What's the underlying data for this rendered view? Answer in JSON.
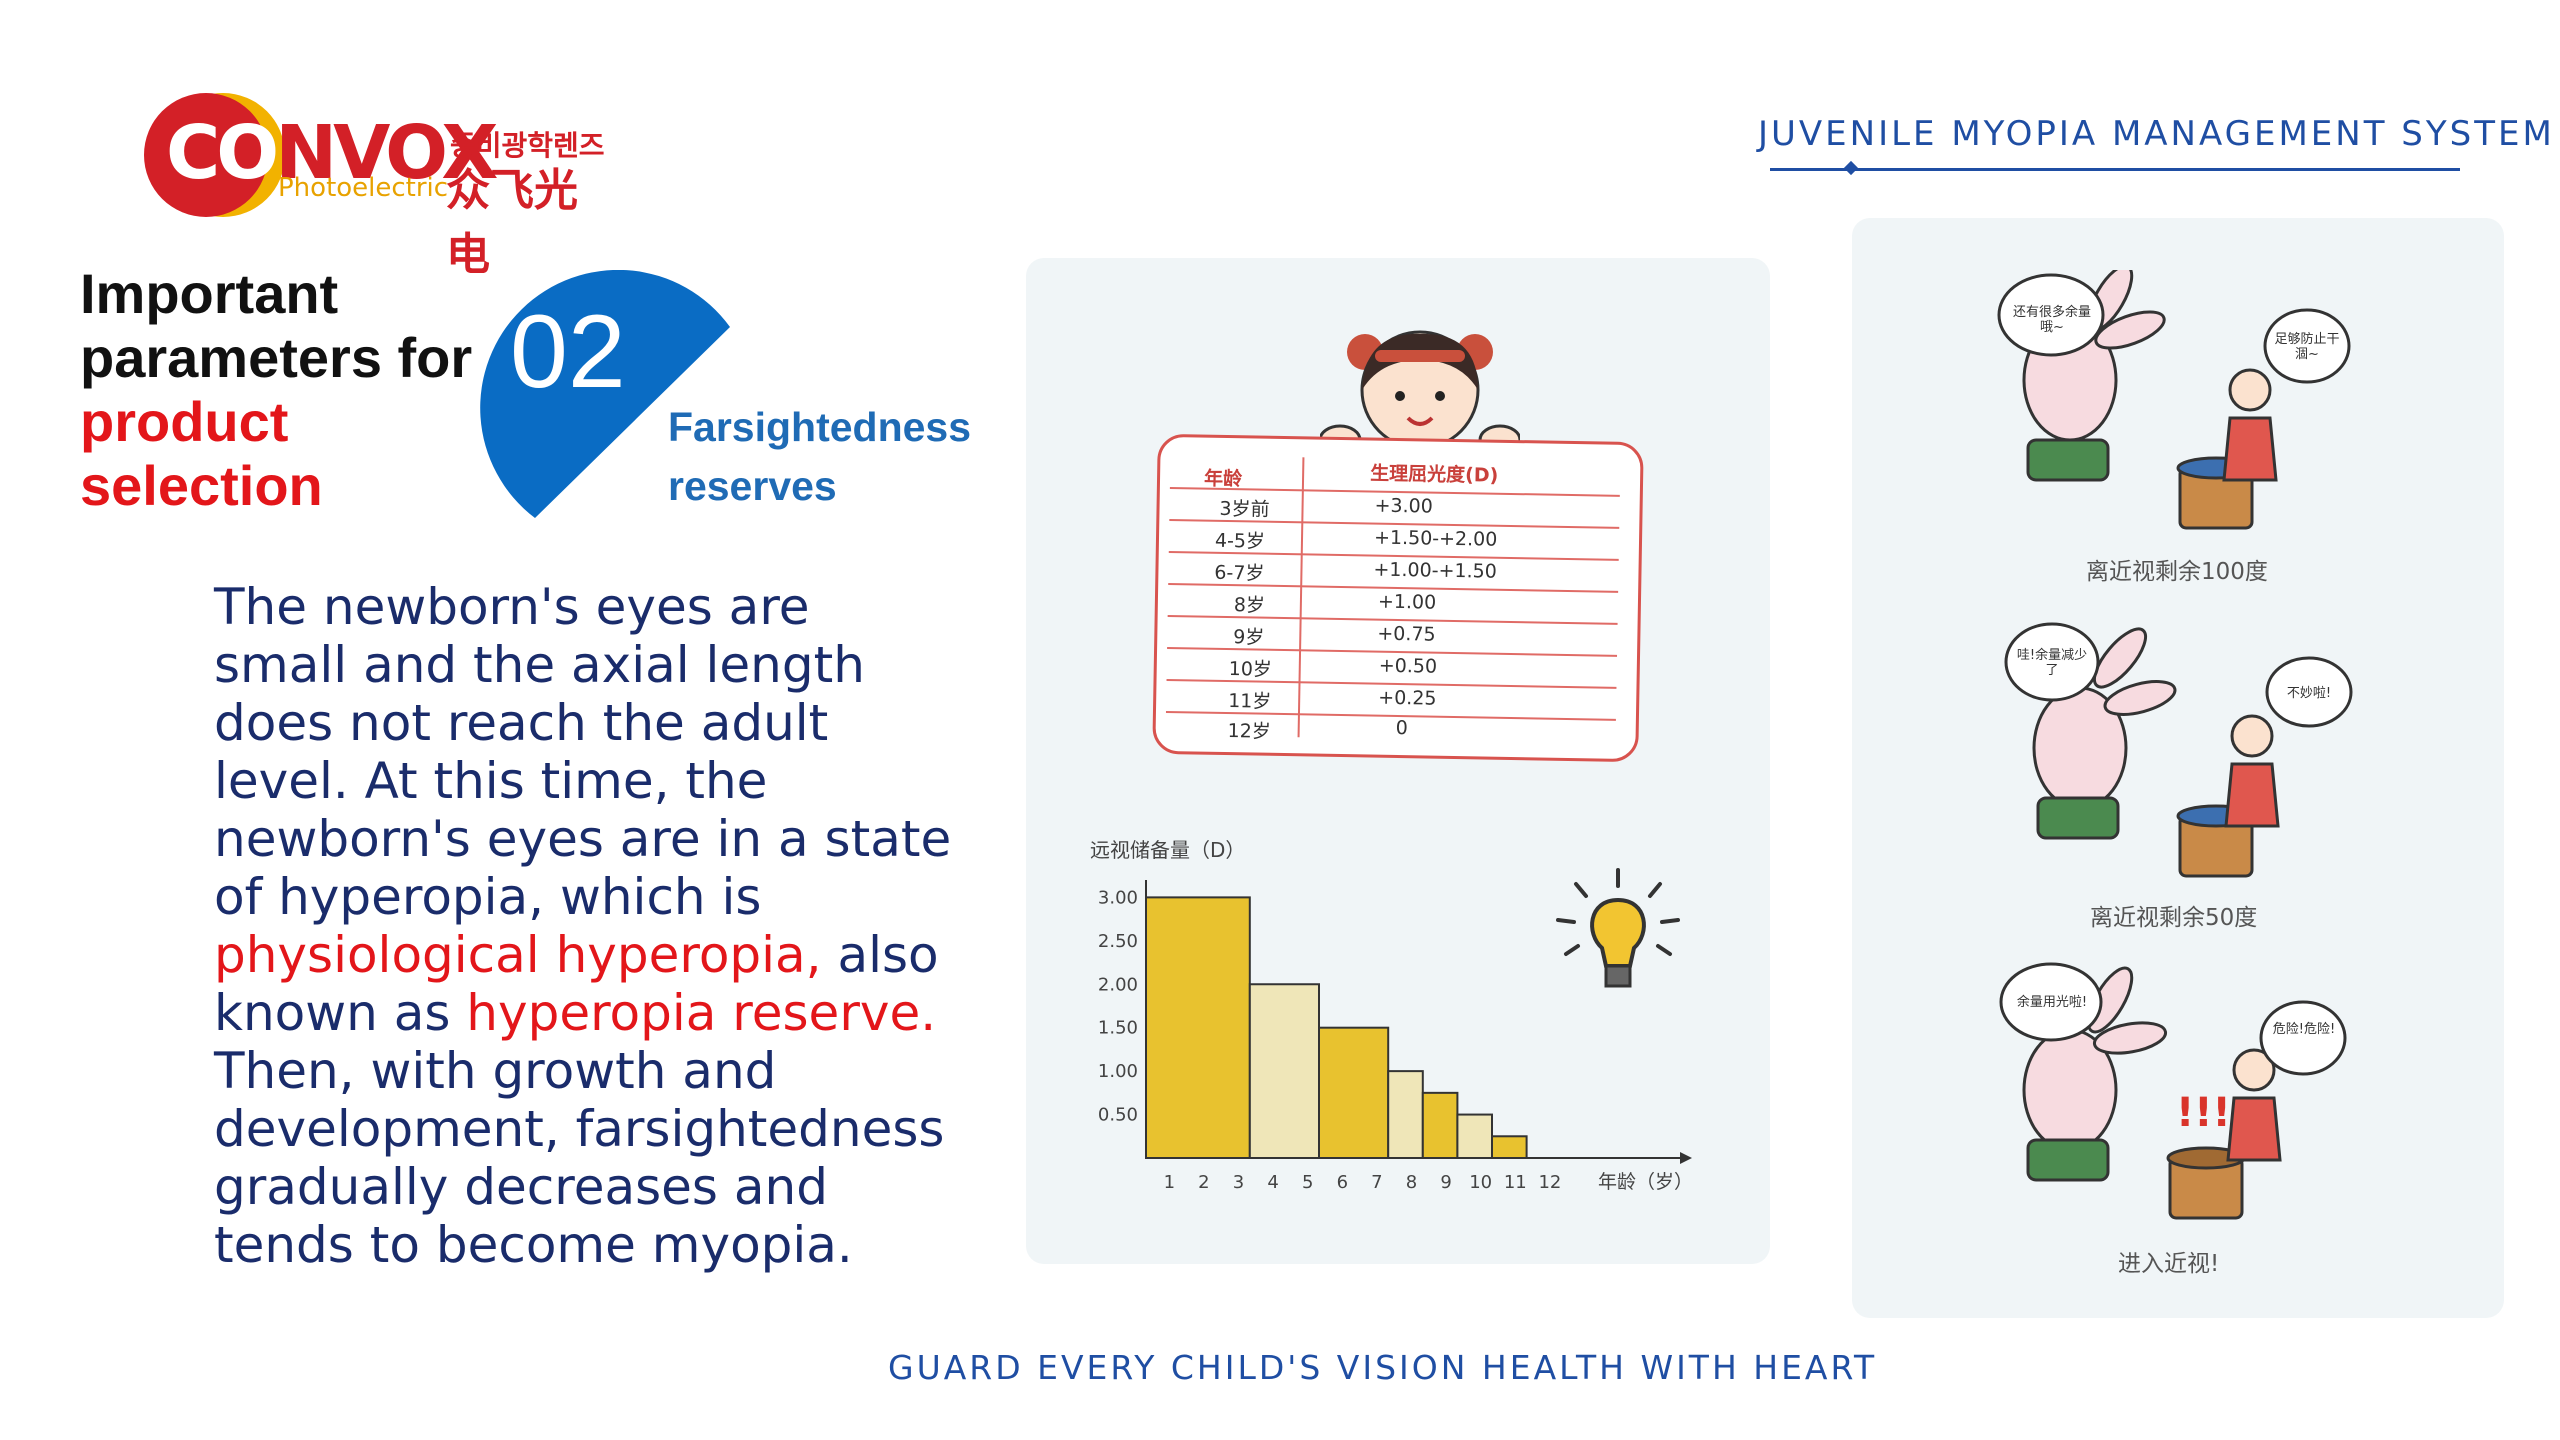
{
  "brand": {
    "logo_word_first": "CO",
    "logo_word_rest": "NVOX",
    "logo_sub": "Photoelectric",
    "logo_korean": "중비광학렌즈",
    "logo_chinese": "众飞光电"
  },
  "header": {
    "title": "JUVENILE MYOPIA MANAGEMENT SYSTEM"
  },
  "section": {
    "title_line1": "Important",
    "title_line2": "parameters for",
    "title_line3": "product",
    "title_line4": "selection",
    "number": "02",
    "subtitle_line1": "Farsightedness",
    "subtitle_line2": "reserves"
  },
  "body": {
    "part1": "The newborn's eyes are small and the axial length does not reach the adult level. At this time, the newborn's eyes are in a state of hyperopia, which is ",
    "highlight1": "physiological hyperopia,",
    "part2": " also known as ",
    "highlight2": "hyperopia reserve.",
    "part3": " Then, with growth and development, farsightedness gradually decreases and tends to become myopia."
  },
  "table_card": {
    "header_age": "年龄",
    "header_value": "生理屈光度(D)",
    "rows": [
      {
        "age": "3岁前",
        "value": "+3.00"
      },
      {
        "age": "4-5岁",
        "value": "+1.50-+2.00"
      },
      {
        "age": "6-7岁",
        "value": "+1.00-+1.50"
      },
      {
        "age": "8岁",
        "value": "+1.00"
      },
      {
        "age": "9岁",
        "value": "+0.75"
      },
      {
        "age": "10岁",
        "value": "+0.50"
      },
      {
        "age": "11岁",
        "value": "+0.25"
      },
      {
        "age": "12岁",
        "value": "0"
      }
    ]
  },
  "chart_data": {
    "type": "bar",
    "title": "",
    "ylabel": "远视储备量（D）",
    "xlabel": "年龄（岁）",
    "x_ticks": [
      "1",
      "2",
      "3",
      "4",
      "5",
      "6",
      "7",
      "8",
      "9",
      "10",
      "11",
      "12"
    ],
    "y_ticks": [
      "3.00",
      "2.50",
      "2.00",
      "1.50",
      "1.00",
      "0.50"
    ],
    "ylim": [
      0,
      3.2
    ],
    "bars": [
      {
        "x_start": 0,
        "x_end": 3,
        "value": 3.0,
        "color": "#e8c22f"
      },
      {
        "x_start": 3,
        "x_end": 5,
        "value": 2.0,
        "color": "#efe6b8"
      },
      {
        "x_start": 5,
        "x_end": 7,
        "value": 1.5,
        "color": "#e8c22f"
      },
      {
        "x_start": 7,
        "x_end": 8,
        "value": 1.0,
        "color": "#efe6b8"
      },
      {
        "x_start": 8,
        "x_end": 9,
        "value": 0.75,
        "color": "#e8c22f"
      },
      {
        "x_start": 9,
        "x_end": 10,
        "value": 0.5,
        "color": "#efe6b8"
      },
      {
        "x_start": 10,
        "x_end": 11,
        "value": 0.25,
        "color": "#e8c22f"
      }
    ]
  },
  "comic": {
    "panels": [
      {
        "caption": "离近视剩余100度",
        "bubble_left": "还有很多余量哦~",
        "bubble_right": "足够防止干涸~"
      },
      {
        "caption": "离近视剩余50度",
        "bubble_left": "哇!余量减少了",
        "bubble_right": "不妙啦!"
      },
      {
        "caption": "进入近视!",
        "bubble_left": "余量用光啦!",
        "bubble_right": "危险!危险!",
        "exclaim": "!!!"
      }
    ]
  },
  "footer": {
    "text": "GUARD EVERY CHILD'S VISION HEALTH WITH HEART"
  },
  "colors": {
    "brand_blue": "#1f4ea3",
    "accent_red": "#e3161a",
    "badge_blue": "#0a6cc4",
    "bar_yellow": "#e8c22f",
    "bar_cream": "#efe6b8"
  }
}
